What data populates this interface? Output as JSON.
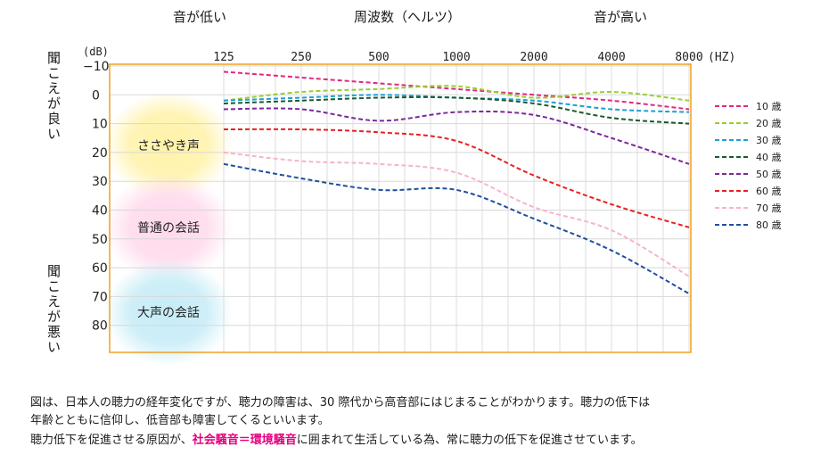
{
  "header": {
    "low_label": "音が低い",
    "freq_label": "周波数（ヘルツ）",
    "high_label": "音が高い"
  },
  "side": {
    "good_label": "聞こえが良い",
    "bad_label": "聞こえが悪い"
  },
  "zones": [
    {
      "label": "ささやき声",
      "color": "#fff2a8"
    },
    {
      "label": "普通の会話",
      "color": "#ffd9ec"
    },
    {
      "label": "大声の会話",
      "color": "#c6ecf7"
    }
  ],
  "caption": {
    "line1": "図は、日本人の聴力の経年変化ですが、聴力の障害は、30 際代から高音部にはじまることがわかります。聴力の低下は",
    "line2": "年齢とともに信仰し、低音部も障害してくるといいます。",
    "line3_pre": "聴力低下を促進させる原因が、",
    "line3_highlight": "社会騒音＝環境騒音",
    "line3_post": "に囲まれて生活している為、常に聴力の低下を促進させています。"
  },
  "chart_data": {
    "type": "line",
    "x_unit_label": "(HZ)",
    "y_unit_label": "(dB)",
    "x": [
      125,
      250,
      500,
      1000,
      2000,
      4000,
      8000
    ],
    "x_tick_labels": [
      "125",
      "250",
      "500",
      "1000",
      "2000",
      "4000",
      "8000"
    ],
    "y_ticks": [
      "−10",
      "0",
      "10",
      "20",
      "30",
      "40",
      "50",
      "60",
      "70",
      "80"
    ],
    "ylim": [
      -10,
      90
    ],
    "y_inverted": true,
    "grid": true,
    "legend_position": "right",
    "frame_color": "#f0a020",
    "series": [
      {
        "name": "10 歳",
        "color": "#e0287f",
        "values": [
          -8,
          -6,
          -4,
          -2,
          0,
          2,
          5
        ]
      },
      {
        "name": "20 歳",
        "color": "#9acd32",
        "values": [
          2,
          -1,
          -2,
          -3,
          1,
          -1,
          2
        ]
      },
      {
        "name": "30 歳",
        "color": "#1e9fd6",
        "values": [
          2,
          1,
          0,
          1,
          2,
          5,
          6
        ]
      },
      {
        "name": "40 歳",
        "color": "#1a5a2e",
        "values": [
          3,
          2,
          1,
          1,
          3,
          8,
          10
        ]
      },
      {
        "name": "50 歳",
        "color": "#7a2a9a",
        "values": [
          5,
          5,
          9,
          6,
          7,
          15,
          24
        ]
      },
      {
        "name": "60 歳",
        "color": "#e82020",
        "values": [
          12,
          12,
          13,
          16,
          28,
          38,
          46
        ]
      },
      {
        "name": "70 歳",
        "color": "#f7b3d0",
        "values": [
          20,
          23,
          24,
          27,
          39,
          47,
          63
        ]
      },
      {
        "name": "80 歳",
        "color": "#1f4f9c",
        "values": [
          24,
          29,
          33,
          33,
          43,
          54,
          69
        ]
      }
    ]
  }
}
